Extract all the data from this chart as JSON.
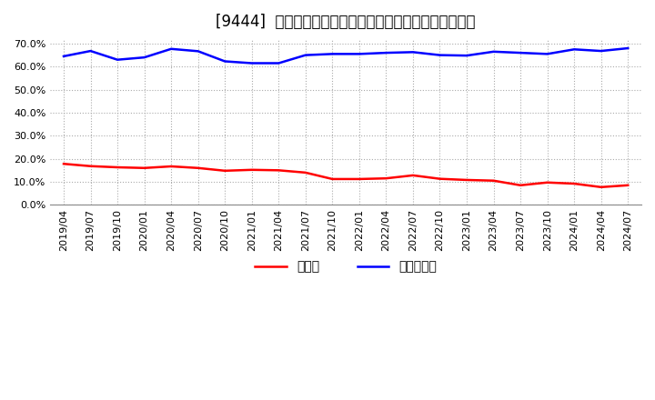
{
  "title": "[9444]  現顀金、有利子負債の総資産に対する比率の推移",
  "x_labels": [
    "2019/04",
    "2019/07",
    "2019/10",
    "2020/01",
    "2020/04",
    "2020/07",
    "2020/10",
    "2021/01",
    "2021/04",
    "2021/07",
    "2021/10",
    "2022/01",
    "2022/04",
    "2022/07",
    "2022/10",
    "2023/01",
    "2023/04",
    "2023/07",
    "2023/10",
    "2024/01",
    "2024/04",
    "2024/07"
  ],
  "cash_values": [
    0.178,
    0.168,
    0.163,
    0.16,
    0.167,
    0.16,
    0.148,
    0.152,
    0.15,
    0.14,
    0.112,
    0.112,
    0.115,
    0.128,
    0.113,
    0.108,
    0.105,
    0.085,
    0.097,
    0.092,
    0.077,
    0.085
  ],
  "debt_values": [
    0.645,
    0.668,
    0.63,
    0.64,
    0.677,
    0.667,
    0.623,
    0.615,
    0.615,
    0.65,
    0.655,
    0.655,
    0.66,
    0.663,
    0.65,
    0.648,
    0.665,
    0.66,
    0.655,
    0.675,
    0.668,
    0.68
  ],
  "cash_color": "#ff0000",
  "debt_color": "#0000ff",
  "ylim": [
    0.0,
    0.72
  ],
  "yticks": [
    0.0,
    0.1,
    0.2,
    0.3,
    0.4,
    0.5,
    0.6,
    0.7
  ],
  "legend_cash": "現顀金",
  "legend_debt": "有利子負債",
  "background_color": "#ffffff",
  "grid_color": "#aaaaaa",
  "title_fontsize": 12,
  "tick_fontsize": 8,
  "legend_fontsize": 10
}
